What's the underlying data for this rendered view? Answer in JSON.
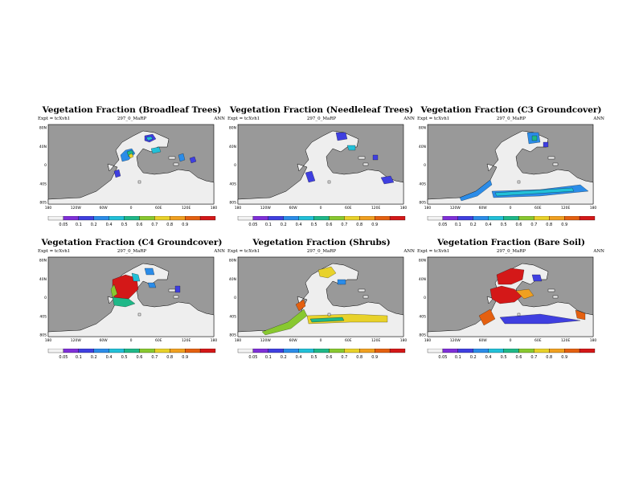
{
  "colors": {
    "ocean": "#999999",
    "land": "#eeeeee",
    "ramp": [
      "#f2f2f2",
      "#7f30d8",
      "#3f3fe0",
      "#2b8ce8",
      "#22c0d8",
      "#1fb888",
      "#88c830",
      "#e8d22a",
      "#f0a020",
      "#e46010",
      "#d41818"
    ]
  },
  "axes": {
    "lat_labels": [
      "80N",
      "40N",
      "0",
      "40S",
      "80S"
    ],
    "lon_labels": [
      "180",
      "120W",
      "60W",
      "0",
      "60E",
      "120E",
      "180"
    ]
  },
  "panels": [
    {
      "title": "Vegetation Fraction (Broadleaf Trees)",
      "expt": "Expt = tcXvh1",
      "code": "297_0_MaRP",
      "season": "ANN",
      "colorbar": [
        "0.05",
        "0.1",
        "0.2",
        "0.4",
        "0.5",
        "0.6",
        "0.7",
        "0.8",
        "0.9"
      ],
      "pattern": "broadleaf"
    },
    {
      "title": "Vegetation Fraction (Needleleaf Trees)",
      "expt": "Expt = tcXvh1",
      "code": "297_0_MaRP",
      "season": "ANN",
      "colorbar": [
        "0.05",
        "0.1",
        "0.2",
        "0.4",
        "0.5",
        "0.6",
        "0.7",
        "0.8",
        "0.9"
      ],
      "pattern": "needleleaf"
    },
    {
      "title": "Vegetation Fraction (C3 Groundcover)",
      "expt": "Expt = tcXvh1",
      "code": "297_0_MaRP",
      "season": "ANN",
      "colorbar": [
        "0.05",
        "0.1",
        "0.2",
        "0.4",
        "0.5",
        "0.6",
        "0.7",
        "0.8",
        "0.9"
      ],
      "pattern": "c3"
    },
    {
      "title": "Vegetation Fraction (C4 Groundcover)",
      "expt": "Expt = tcXvh1",
      "code": "297_0_MaRP",
      "season": "ANN",
      "colorbar": [
        "0.05",
        "0.1",
        "0.2",
        "0.4",
        "0.5",
        "0.6",
        "0.7",
        "0.8",
        "0.9"
      ],
      "pattern": "c4"
    },
    {
      "title": "Vegetation Fraction (Shrubs)",
      "expt": "Expt = tcXvh1",
      "code": "297_0_MaRP",
      "season": "ANN",
      "colorbar": [
        "0.05",
        "0.1",
        "0.2",
        "0.4",
        "0.5",
        "0.6",
        "0.7",
        "0.8",
        "0.9"
      ],
      "pattern": "shrubs"
    },
    {
      "title": "Vegetation Fraction (Bare Soil)",
      "expt": "Expt = tcXvh1",
      "code": "297_0_MaRP",
      "season": "ANN",
      "colorbar": [
        "0.05",
        "0.1",
        "0.2",
        "0.4",
        "0.5",
        "0.6",
        "0.7",
        "0.8",
        "0.9"
      ],
      "pattern": "bare"
    }
  ]
}
